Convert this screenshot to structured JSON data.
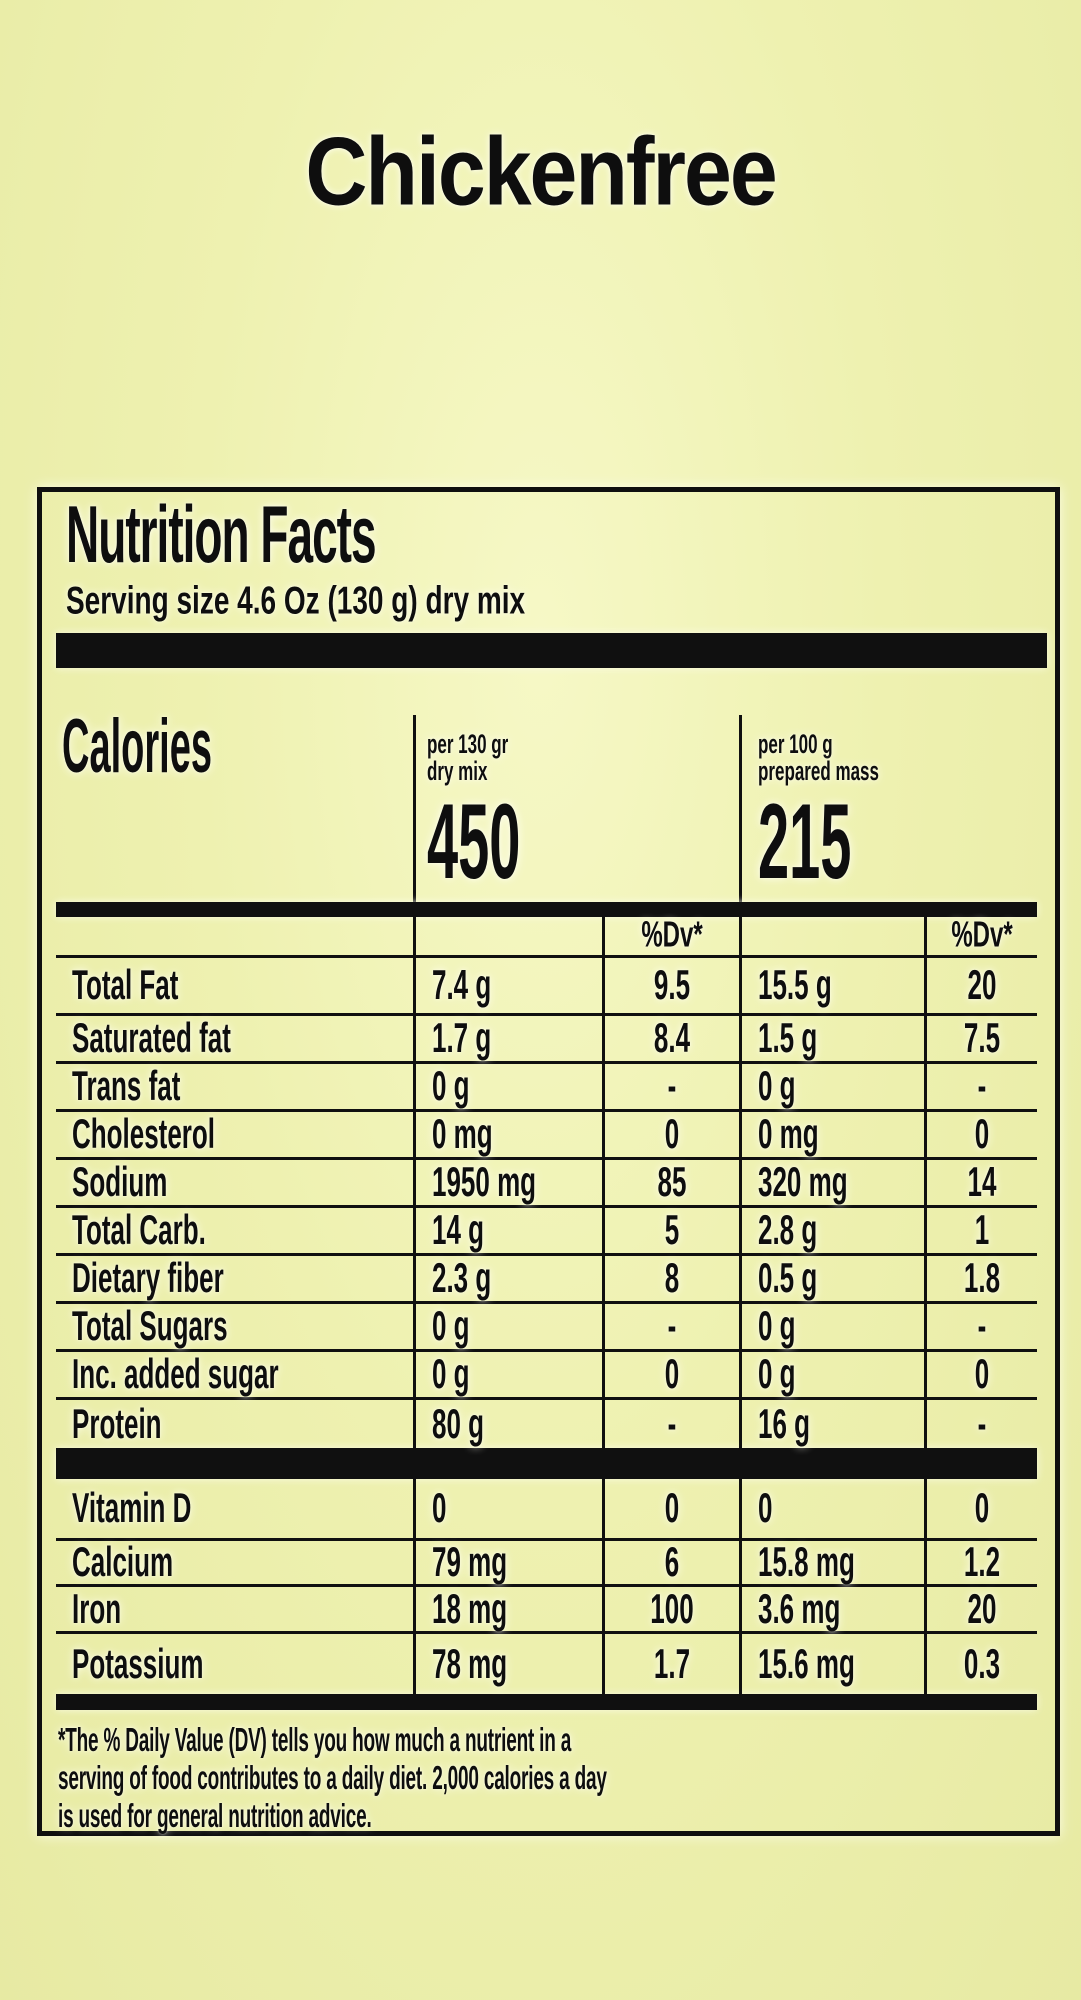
{
  "page": {
    "title": "Chickenfree"
  },
  "label": {
    "title": "Nutrition Facts",
    "serving_size": "Serving size 4.6 Oz (130 g) dry mix",
    "calories": {
      "heading": "Calories",
      "columns": [
        {
          "note1": "per 130 gr",
          "note2": "dry mix",
          "value": "450"
        },
        {
          "note1": "per 100 g",
          "note2": "prepared mass",
          "value": "215"
        }
      ]
    },
    "table": {
      "dv_header": "%Dv*",
      "rows": [
        {
          "label": "Total Fat",
          "amount1": "7.4 g",
          "dv1": "9.5",
          "amount2": "15.5 g",
          "dv2": "20"
        },
        {
          "label": "Saturated fat",
          "amount1": "1.7 g",
          "dv1": "8.4",
          "amount2": "1.5 g",
          "dv2": "7.5"
        },
        {
          "label": "Trans fat",
          "amount1": "0 g",
          "dv1": "-",
          "amount2": "0 g",
          "dv2": "-"
        },
        {
          "label": "Cholesterol",
          "amount1": "0 mg",
          "dv1": "0",
          "amount2": "0 mg",
          "dv2": "0"
        },
        {
          "label": "Sodium",
          "amount1": "1950 mg",
          "dv1": "85",
          "amount2": "320 mg",
          "dv2": "14"
        },
        {
          "label": "Total Carb.",
          "amount1": "14 g",
          "dv1": "5",
          "amount2": "2.8 g",
          "dv2": "1"
        },
        {
          "label": "Dietary fiber",
          "amount1": "2.3 g",
          "dv1": "8",
          "amount2": "0.5 g",
          "dv2": "1.8"
        },
        {
          "label": "Total Sugars",
          "amount1": "0 g",
          "dv1": "-",
          "amount2": "0 g",
          "dv2": "-"
        },
        {
          "label": "Inc. added sugar",
          "amount1": "0 g",
          "dv1": "0",
          "amount2": "0 g",
          "dv2": "0"
        },
        {
          "label": "Protein",
          "amount1": "80 g",
          "dv1": "-",
          "amount2": "16 g",
          "dv2": "-"
        }
      ],
      "vitamins": [
        {
          "label": "Vitamin D",
          "amount1": "0",
          "dv1": "0",
          "amount2": "0",
          "dv2": "0"
        },
        {
          "label": "Calcium",
          "amount1": "79 mg",
          "dv1": "6",
          "amount2": "15.8 mg",
          "dv2": "1.2"
        },
        {
          "label": "Iron",
          "amount1": "18 mg",
          "dv1": "100",
          "amount2": "3.6 mg",
          "dv2": "20"
        },
        {
          "label": "Potassium",
          "amount1": "78 mg",
          "dv1": "1.7",
          "amount2": "15.6 mg",
          "dv2": "0.3"
        }
      ]
    },
    "footnote_lines": [
      "*The % Daily Value (DV) tells you how much a nutrient in a",
      "serving of food contributes to a daily diet. 2,000 calories a day",
      "is used for general nutrition advice."
    ]
  }
}
